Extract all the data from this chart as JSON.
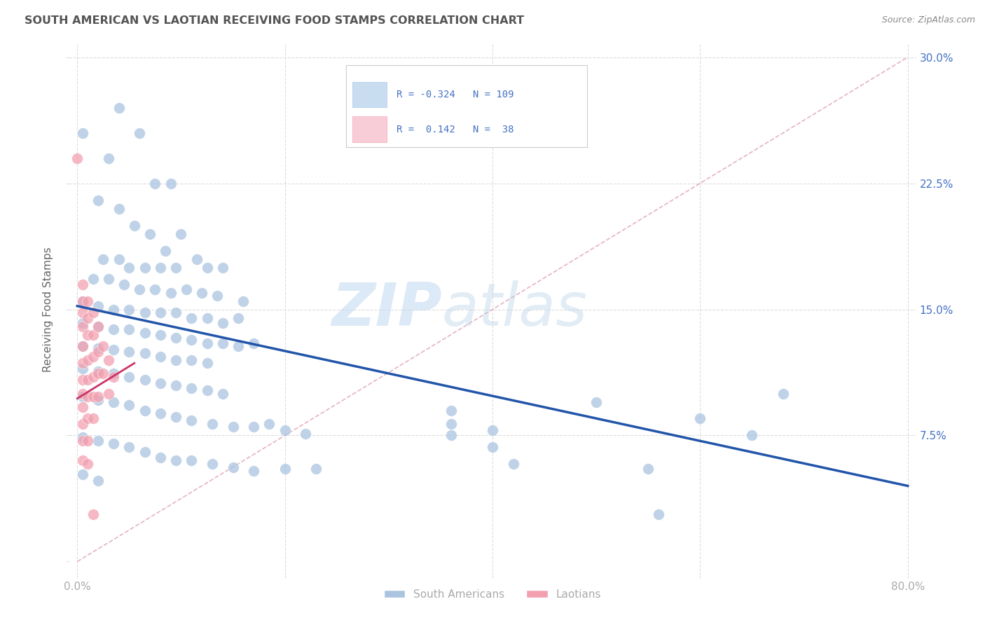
{
  "title": "SOUTH AMERICAN VS LAOTIAN RECEIVING FOOD STAMPS CORRELATION CHART",
  "source": "Source: ZipAtlas.com",
  "ylabel": "Receiving Food Stamps",
  "xlabel": "",
  "xlim": [
    0.0,
    0.8
  ],
  "ylim": [
    0.0,
    0.3
  ],
  "xtick_positions": [
    0.0,
    0.2,
    0.4,
    0.6,
    0.8
  ],
  "xticklabels": [
    "0.0%",
    "",
    "",
    "",
    "80.0%"
  ],
  "ytick_positions": [
    0.0,
    0.075,
    0.15,
    0.225,
    0.3
  ],
  "yticklabels_right": [
    "",
    "7.5%",
    "15.0%",
    "22.5%",
    "30.0%"
  ],
  "watermark_zip": "ZIP",
  "watermark_atlas": "atlas",
  "sa_color": "#aac4e0",
  "la_color": "#f2a0b0",
  "blue_line_color": "#2255aa",
  "red_line_color": "#cc3366",
  "diag_color": "#cccccc",
  "grid_color": "#dddddd",
  "title_color": "#555555",
  "axis_label_color": "#666666",
  "tick_label_color": "#aaaaaa",
  "right_tick_color": "#4472c4",
  "source_color": "#888888",
  "background_color": "#ffffff",
  "blue_line_x0": 0.0,
  "blue_line_y0": 0.152,
  "blue_line_x1": 0.8,
  "blue_line_y1": 0.045,
  "red_line_x0": 0.0,
  "red_line_y0": 0.097,
  "red_line_x1": 0.055,
  "red_line_y1": 0.118,
  "sa_points": [
    [
      0.005,
      0.255
    ],
    [
      0.03,
      0.24
    ],
    [
      0.04,
      0.27
    ],
    [
      0.06,
      0.255
    ],
    [
      0.075,
      0.225
    ],
    [
      0.09,
      0.225
    ],
    [
      0.02,
      0.215
    ],
    [
      0.04,
      0.21
    ],
    [
      0.055,
      0.2
    ],
    [
      0.07,
      0.195
    ],
    [
      0.085,
      0.185
    ],
    [
      0.1,
      0.195
    ],
    [
      0.025,
      0.18
    ],
    [
      0.04,
      0.18
    ],
    [
      0.05,
      0.175
    ],
    [
      0.065,
      0.175
    ],
    [
      0.08,
      0.175
    ],
    [
      0.095,
      0.175
    ],
    [
      0.115,
      0.18
    ],
    [
      0.125,
      0.175
    ],
    [
      0.14,
      0.175
    ],
    [
      0.015,
      0.168
    ],
    [
      0.03,
      0.168
    ],
    [
      0.045,
      0.165
    ],
    [
      0.06,
      0.162
    ],
    [
      0.075,
      0.162
    ],
    [
      0.09,
      0.16
    ],
    [
      0.105,
      0.162
    ],
    [
      0.12,
      0.16
    ],
    [
      0.135,
      0.158
    ],
    [
      0.16,
      0.155
    ],
    [
      0.005,
      0.155
    ],
    [
      0.02,
      0.152
    ],
    [
      0.035,
      0.15
    ],
    [
      0.05,
      0.15
    ],
    [
      0.065,
      0.148
    ],
    [
      0.08,
      0.148
    ],
    [
      0.095,
      0.148
    ],
    [
      0.11,
      0.145
    ],
    [
      0.125,
      0.145
    ],
    [
      0.14,
      0.142
    ],
    [
      0.155,
      0.145
    ],
    [
      0.005,
      0.142
    ],
    [
      0.02,
      0.14
    ],
    [
      0.035,
      0.138
    ],
    [
      0.05,
      0.138
    ],
    [
      0.065,
      0.136
    ],
    [
      0.08,
      0.135
    ],
    [
      0.095,
      0.133
    ],
    [
      0.11,
      0.132
    ],
    [
      0.125,
      0.13
    ],
    [
      0.14,
      0.13
    ],
    [
      0.155,
      0.128
    ],
    [
      0.17,
      0.13
    ],
    [
      0.005,
      0.128
    ],
    [
      0.02,
      0.127
    ],
    [
      0.035,
      0.126
    ],
    [
      0.05,
      0.125
    ],
    [
      0.065,
      0.124
    ],
    [
      0.08,
      0.122
    ],
    [
      0.095,
      0.12
    ],
    [
      0.11,
      0.12
    ],
    [
      0.125,
      0.118
    ],
    [
      0.005,
      0.115
    ],
    [
      0.02,
      0.113
    ],
    [
      0.035,
      0.112
    ],
    [
      0.05,
      0.11
    ],
    [
      0.065,
      0.108
    ],
    [
      0.08,
      0.106
    ],
    [
      0.095,
      0.105
    ],
    [
      0.11,
      0.103
    ],
    [
      0.125,
      0.102
    ],
    [
      0.14,
      0.1
    ],
    [
      0.005,
      0.098
    ],
    [
      0.02,
      0.096
    ],
    [
      0.035,
      0.095
    ],
    [
      0.05,
      0.093
    ],
    [
      0.065,
      0.09
    ],
    [
      0.08,
      0.088
    ],
    [
      0.095,
      0.086
    ],
    [
      0.11,
      0.084
    ],
    [
      0.13,
      0.082
    ],
    [
      0.15,
      0.08
    ],
    [
      0.17,
      0.08
    ],
    [
      0.185,
      0.082
    ],
    [
      0.2,
      0.078
    ],
    [
      0.22,
      0.076
    ],
    [
      0.005,
      0.074
    ],
    [
      0.02,
      0.072
    ],
    [
      0.035,
      0.07
    ],
    [
      0.05,
      0.068
    ],
    [
      0.065,
      0.065
    ],
    [
      0.08,
      0.062
    ],
    [
      0.095,
      0.06
    ],
    [
      0.11,
      0.06
    ],
    [
      0.13,
      0.058
    ],
    [
      0.15,
      0.056
    ],
    [
      0.17,
      0.054
    ],
    [
      0.2,
      0.055
    ],
    [
      0.23,
      0.055
    ],
    [
      0.005,
      0.052
    ],
    [
      0.02,
      0.048
    ],
    [
      0.36,
      0.09
    ],
    [
      0.36,
      0.082
    ],
    [
      0.36,
      0.075
    ],
    [
      0.4,
      0.078
    ],
    [
      0.4,
      0.068
    ],
    [
      0.42,
      0.058
    ],
    [
      0.5,
      0.095
    ],
    [
      0.55,
      0.055
    ],
    [
      0.56,
      0.028
    ],
    [
      0.6,
      0.085
    ],
    [
      0.65,
      0.075
    ],
    [
      0.68,
      0.1
    ]
  ],
  "la_points": [
    [
      0.0,
      0.24
    ],
    [
      0.005,
      0.165
    ],
    [
      0.005,
      0.155
    ],
    [
      0.005,
      0.148
    ],
    [
      0.005,
      0.14
    ],
    [
      0.005,
      0.128
    ],
    [
      0.005,
      0.118
    ],
    [
      0.005,
      0.108
    ],
    [
      0.005,
      0.1
    ],
    [
      0.005,
      0.092
    ],
    [
      0.005,
      0.082
    ],
    [
      0.005,
      0.072
    ],
    [
      0.005,
      0.06
    ],
    [
      0.01,
      0.155
    ],
    [
      0.01,
      0.145
    ],
    [
      0.01,
      0.135
    ],
    [
      0.01,
      0.12
    ],
    [
      0.01,
      0.108
    ],
    [
      0.01,
      0.098
    ],
    [
      0.01,
      0.085
    ],
    [
      0.01,
      0.072
    ],
    [
      0.01,
      0.058
    ],
    [
      0.015,
      0.148
    ],
    [
      0.015,
      0.135
    ],
    [
      0.015,
      0.122
    ],
    [
      0.015,
      0.11
    ],
    [
      0.015,
      0.098
    ],
    [
      0.015,
      0.085
    ],
    [
      0.015,
      0.028
    ],
    [
      0.02,
      0.14
    ],
    [
      0.02,
      0.125
    ],
    [
      0.02,
      0.112
    ],
    [
      0.02,
      0.098
    ],
    [
      0.025,
      0.128
    ],
    [
      0.025,
      0.112
    ],
    [
      0.03,
      0.12
    ],
    [
      0.03,
      0.1
    ],
    [
      0.035,
      0.11
    ]
  ]
}
